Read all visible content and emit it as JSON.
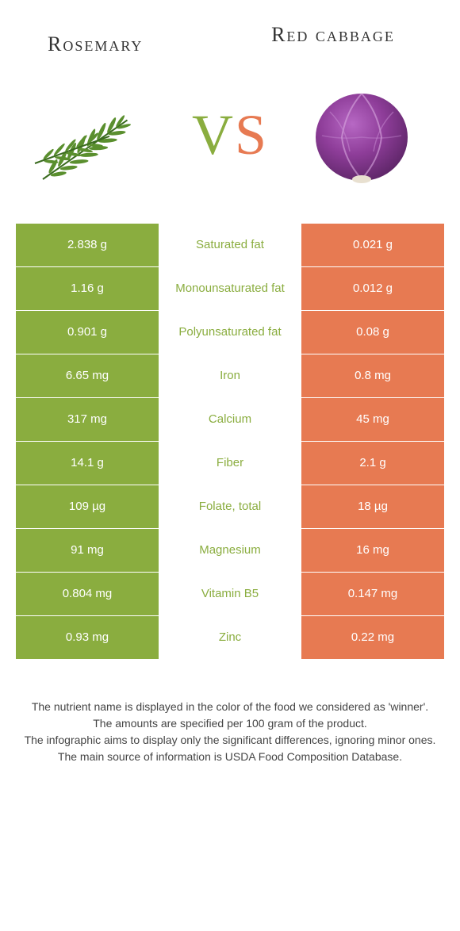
{
  "titles": {
    "left": "Rosemary",
    "right": "Red cabbage"
  },
  "vs": {
    "v": "V",
    "s": "S"
  },
  "colors": {
    "left_bg": "#8aad3f",
    "right_bg": "#e77a52",
    "left_text": "#8aad3f",
    "right_text": "#e77a52",
    "cell_text": "#ffffff",
    "footer_text": "#444444"
  },
  "rows": [
    {
      "left": "2.838 g",
      "label": "Saturated fat",
      "right": "0.021 g",
      "winner": "left"
    },
    {
      "left": "1.16 g",
      "label": "Monounsaturated fat",
      "right": "0.012 g",
      "winner": "left"
    },
    {
      "left": "0.901 g",
      "label": "Polyunsaturated fat",
      "right": "0.08 g",
      "winner": "left"
    },
    {
      "left": "6.65 mg",
      "label": "Iron",
      "right": "0.8 mg",
      "winner": "left"
    },
    {
      "left": "317 mg",
      "label": "Calcium",
      "right": "45 mg",
      "winner": "left"
    },
    {
      "left": "14.1 g",
      "label": "Fiber",
      "right": "2.1 g",
      "winner": "left"
    },
    {
      "left": "109 µg",
      "label": "Folate, total",
      "right": "18 µg",
      "winner": "left"
    },
    {
      "left": "91 mg",
      "label": "Magnesium",
      "right": "16 mg",
      "winner": "left"
    },
    {
      "left": "0.804 mg",
      "label": "Vitamin B5",
      "right": "0.147 mg",
      "winner": "left"
    },
    {
      "left": "0.93 mg",
      "label": "Zinc",
      "right": "0.22 mg",
      "winner": "left"
    }
  ],
  "footer": {
    "line1": "The nutrient name is displayed in the color of the food we considered as 'winner'.",
    "line2": "The amounts are specified per 100 gram of the product.",
    "line3": "The infographic aims to display only the significant differences, ignoring minor ones.",
    "line4": "The main source of information is USDA Food Composition Database."
  }
}
